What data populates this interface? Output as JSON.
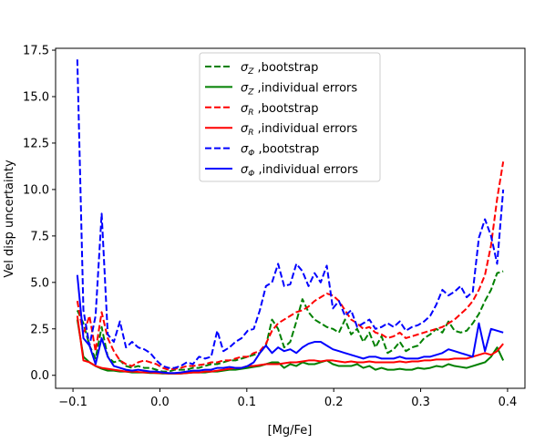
{
  "chart_data": {
    "type": "line",
    "xlabel": "[Mg/Fe]",
    "ylabel": "Vel disp uncertainty",
    "xlim": [
      -0.12,
      0.42
    ],
    "ylim": [
      -0.7,
      17.6
    ],
    "xticks": [
      -0.1,
      0.0,
      0.1,
      0.2,
      0.3,
      0.4
    ],
    "xtick_labels": [
      "−0.1",
      "0.0",
      "0.1",
      "0.2",
      "0.3",
      "0.4"
    ],
    "yticks": [
      0.0,
      2.5,
      5.0,
      7.5,
      10.0,
      12.5,
      15.0,
      17.5
    ],
    "ytick_labels": [
      "0.0",
      "2.5",
      "5.0",
      "7.5",
      "10.0",
      "12.5",
      "15.0",
      "17.5"
    ],
    "grid": false,
    "legend_position": "top-center",
    "x": [
      -0.095,
      -0.088,
      -0.081,
      -0.074,
      -0.067,
      -0.06,
      -0.053,
      -0.046,
      -0.039,
      -0.032,
      -0.025,
      -0.018,
      -0.011,
      -0.004,
      0.003,
      0.01,
      0.017,
      0.024,
      0.031,
      0.038,
      0.045,
      0.052,
      0.059,
      0.066,
      0.073,
      0.08,
      0.087,
      0.094,
      0.101,
      0.108,
      0.115,
      0.122,
      0.129,
      0.136,
      0.143,
      0.15,
      0.157,
      0.164,
      0.171,
      0.178,
      0.185,
      0.192,
      0.199,
      0.206,
      0.213,
      0.22,
      0.227,
      0.234,
      0.241,
      0.248,
      0.255,
      0.262,
      0.269,
      0.276,
      0.283,
      0.29,
      0.297,
      0.304,
      0.311,
      0.318,
      0.325,
      0.332,
      0.339,
      0.346,
      0.353,
      0.36,
      0.367,
      0.374,
      0.381,
      0.388,
      0.395
    ],
    "series": [
      {
        "legend_label": "σ_Z ,bootstrap",
        "color": "#008000",
        "dashed": true,
        "values": [
          3.5,
          2.8,
          1.6,
          0.9,
          2.6,
          1.0,
          0.7,
          0.8,
          0.5,
          0.4,
          0.5,
          0.4,
          0.4,
          0.3,
          0.2,
          0.2,
          0.3,
          0.3,
          0.3,
          0.4,
          0.4,
          0.5,
          0.6,
          0.6,
          0.7,
          0.8,
          0.8,
          0.9,
          1.0,
          1.1,
          1.2,
          1.6,
          3.0,
          2.5,
          1.5,
          1.8,
          2.9,
          4.1,
          3.4,
          3.0,
          2.8,
          2.6,
          2.5,
          2.3,
          3.0,
          2.2,
          2.5,
          1.8,
          2.3,
          1.5,
          2.1,
          1.2,
          1.4,
          1.8,
          1.3,
          1.5,
          1.6,
          2.0,
          2.2,
          2.5,
          2.3,
          2.9,
          2.4,
          2.3,
          2.4,
          2.8,
          3.3,
          4.0,
          4.6,
          5.5,
          5.6
        ]
      },
      {
        "legend_label": "σ_Z ,individual errors",
        "color": "#008000",
        "dashed": false,
        "values": [
          3.0,
          1.0,
          0.7,
          0.5,
          0.35,
          0.25,
          0.25,
          0.2,
          0.2,
          0.15,
          0.15,
          0.15,
          0.12,
          0.12,
          0.1,
          0.1,
          0.1,
          0.1,
          0.12,
          0.15,
          0.15,
          0.15,
          0.2,
          0.2,
          0.25,
          0.3,
          0.3,
          0.35,
          0.4,
          0.45,
          0.5,
          0.6,
          0.7,
          0.7,
          0.4,
          0.6,
          0.5,
          0.7,
          0.6,
          0.6,
          0.7,
          0.8,
          0.6,
          0.5,
          0.5,
          0.5,
          0.6,
          0.4,
          0.5,
          0.3,
          0.4,
          0.3,
          0.3,
          0.35,
          0.3,
          0.3,
          0.4,
          0.35,
          0.4,
          0.5,
          0.45,
          0.6,
          0.5,
          0.45,
          0.4,
          0.5,
          0.6,
          0.7,
          1.0,
          1.5,
          0.8
        ]
      },
      {
        "legend_label": "σ_R ,bootstrap",
        "color": "#ff0000",
        "dashed": true,
        "values": [
          4.0,
          2.2,
          3.2,
          1.3,
          3.4,
          2.0,
          1.3,
          0.8,
          0.6,
          0.5,
          0.7,
          0.8,
          0.7,
          0.6,
          0.4,
          0.3,
          0.35,
          0.4,
          0.5,
          0.5,
          0.55,
          0.6,
          0.7,
          0.7,
          0.8,
          0.8,
          0.9,
          1.0,
          1.0,
          1.2,
          1.3,
          1.7,
          2.4,
          2.8,
          3.0,
          3.2,
          3.4,
          3.5,
          3.7,
          4.0,
          4.2,
          4.4,
          4.3,
          4.0,
          3.5,
          3.0,
          2.8,
          2.5,
          2.6,
          2.3,
          2.2,
          2.0,
          2.1,
          2.3,
          2.0,
          2.1,
          2.2,
          2.3,
          2.4,
          2.5,
          2.6,
          2.8,
          3.0,
          3.3,
          3.6,
          4.0,
          4.6,
          5.4,
          7.0,
          9.5,
          11.5
        ]
      },
      {
        "legend_label": "σ_R ,individual errors",
        "color": "#ff0000",
        "dashed": false,
        "values": [
          3.2,
          0.8,
          0.7,
          0.5,
          0.4,
          0.35,
          0.3,
          0.25,
          0.2,
          0.2,
          0.18,
          0.15,
          0.15,
          0.12,
          0.12,
          0.1,
          0.1,
          0.1,
          0.12,
          0.15,
          0.15,
          0.2,
          0.2,
          0.25,
          0.3,
          0.35,
          0.4,
          0.4,
          0.5,
          0.5,
          0.55,
          0.6,
          0.6,
          0.6,
          0.65,
          0.7,
          0.7,
          0.75,
          0.8,
          0.8,
          0.75,
          0.8,
          0.8,
          0.75,
          0.7,
          0.75,
          0.7,
          0.7,
          0.75,
          0.7,
          0.7,
          0.7,
          0.7,
          0.75,
          0.7,
          0.75,
          0.75,
          0.8,
          0.8,
          0.85,
          0.85,
          0.85,
          0.9,
          0.9,
          0.9,
          1.0,
          1.1,
          1.2,
          1.1,
          1.3,
          1.7
        ]
      },
      {
        "legend_label": "σ_Φ ,bootstrap",
        "color": "#0000ff",
        "dashed": true,
        "values": [
          17.0,
          3.5,
          1.6,
          3.2,
          8.7,
          2.2,
          1.8,
          2.9,
          1.5,
          1.8,
          1.5,
          1.4,
          1.2,
          0.8,
          0.5,
          0.4,
          0.4,
          0.5,
          0.7,
          0.6,
          1.0,
          0.9,
          1.0,
          2.4,
          1.3,
          1.5,
          1.8,
          2.0,
          2.4,
          2.5,
          3.5,
          4.8,
          5.0,
          6.0,
          4.8,
          4.9,
          6.0,
          5.6,
          4.8,
          5.5,
          5.0,
          5.9,
          3.6,
          4.0,
          3.2,
          3.5,
          2.6,
          2.8,
          3.0,
          2.5,
          2.6,
          2.8,
          2.6,
          2.9,
          2.4,
          2.6,
          2.7,
          2.9,
          3.2,
          3.8,
          4.6,
          4.3,
          4.5,
          4.8,
          4.2,
          4.5,
          7.4,
          8.4,
          7.5,
          6.0,
          10.0
        ]
      },
      {
        "legend_label": "σ_Φ ,individual errors",
        "color": "#0000ff",
        "dashed": false,
        "values": [
          5.4,
          2.0,
          1.6,
          0.6,
          2.0,
          1.0,
          0.5,
          0.4,
          0.3,
          0.25,
          0.3,
          0.25,
          0.2,
          0.2,
          0.15,
          0.12,
          0.12,
          0.15,
          0.2,
          0.25,
          0.25,
          0.3,
          0.3,
          0.4,
          0.4,
          0.45,
          0.4,
          0.4,
          0.5,
          0.7,
          1.2,
          1.6,
          1.2,
          1.5,
          1.3,
          1.4,
          1.2,
          1.5,
          1.7,
          1.8,
          1.8,
          1.6,
          1.4,
          1.3,
          1.2,
          1.1,
          1.0,
          0.9,
          1.0,
          1.0,
          0.9,
          0.9,
          0.9,
          1.0,
          0.9,
          0.9,
          0.9,
          1.0,
          1.0,
          1.1,
          1.2,
          1.4,
          1.3,
          1.2,
          1.1,
          1.0,
          2.8,
          1.3,
          2.5,
          2.4,
          2.3
        ]
      }
    ]
  }
}
